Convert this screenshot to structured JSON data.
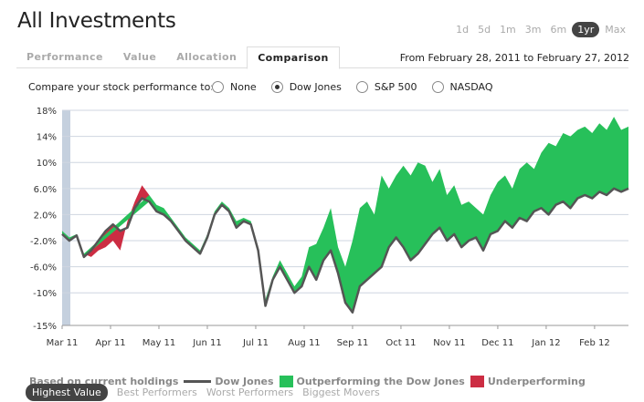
{
  "page": {
    "title": "All Investments"
  },
  "time_ranges": [
    {
      "label": "1d",
      "active": false
    },
    {
      "label": "5d",
      "active": false
    },
    {
      "label": "1m",
      "active": false
    },
    {
      "label": "3m",
      "active": false
    },
    {
      "label": "6m",
      "active": false
    },
    {
      "label": "1yr",
      "active": true
    },
    {
      "label": "Max",
      "active": false
    }
  ],
  "tabs": [
    {
      "label": "Performance",
      "active": false
    },
    {
      "label": "Value",
      "active": false
    },
    {
      "label": "Allocation",
      "active": false
    },
    {
      "label": "Comparison",
      "active": true
    }
  ],
  "date_range": "From February 28, 2011 to February 27, 2012",
  "compare": {
    "prompt": "Compare your stock performance to:",
    "options": [
      {
        "label": "None",
        "selected": false
      },
      {
        "label": "Dow Jones",
        "selected": true
      },
      {
        "label": "S&P 500",
        "selected": false
      },
      {
        "label": "NASDAQ",
        "selected": false
      }
    ]
  },
  "legend": {
    "prefix": "Based on current holdings",
    "line_label": "Dow Jones",
    "outperforming_label": "Outperforming the Dow Jones",
    "underperforming_label": "Underperforming"
  },
  "views": [
    {
      "label": "Highest Value",
      "active": true
    },
    {
      "label": "Best Performers",
      "active": false
    },
    {
      "label": "Worst Performers",
      "active": false
    },
    {
      "label": "Biggest Movers",
      "active": false
    }
  ],
  "colors": {
    "outperforming": "#27c05a",
    "underperforming": "#cc2d43",
    "line": "#555555",
    "grid": "#cfd6e0"
  },
  "chart_data": {
    "type": "area",
    "title": "",
    "xlabel": "",
    "ylabel": "",
    "ylim": [
      -15,
      18
    ],
    "y_ticks": [
      "18%",
      "14%",
      "10%",
      "6.0%",
      "2.0%",
      "-2.0%",
      "-6.0%",
      "-10%",
      "-15%"
    ],
    "x_ticks": [
      "Mar 11",
      "Apr 11",
      "May 11",
      "Jun 11",
      "Jul 11",
      "Aug 11",
      "Sep 11",
      "Oct 11",
      "Nov 11",
      "Dec 11",
      "Jan 12",
      "Feb 12"
    ],
    "x_tick_positions": [
      0,
      1,
      2,
      3,
      4,
      5,
      6,
      7,
      8,
      9,
      10,
      11
    ],
    "grid": true,
    "series": [
      {
        "name": "Dow Jones",
        "x": [
          0,
          0.15,
          0.3,
          0.45,
          0.6,
          0.75,
          0.9,
          1.05,
          1.2,
          1.35,
          1.5,
          1.65,
          1.8,
          1.95,
          2.1,
          2.25,
          2.4,
          2.55,
          2.7,
          2.85,
          3.0,
          3.15,
          3.3,
          3.45,
          3.6,
          3.75,
          3.9,
          4.05,
          4.2,
          4.35,
          4.5,
          4.65,
          4.8,
          4.95,
          5.1,
          5.25,
          5.4,
          5.55,
          5.7,
          5.85,
          6.0,
          6.15,
          6.3,
          6.45,
          6.6,
          6.75,
          6.9,
          7.05,
          7.2,
          7.35,
          7.5,
          7.65,
          7.8,
          7.95,
          8.1,
          8.25,
          8.4,
          8.55,
          8.7,
          8.85,
          9.0,
          9.15,
          9.3,
          9.45,
          9.6,
          9.75,
          9.9,
          10.05,
          10.2,
          10.35,
          10.5,
          10.65,
          10.8,
          10.95,
          11.1,
          11.25,
          11.4,
          11.55,
          11.7
        ],
        "values": [
          -1.0,
          -2.0,
          -1.2,
          -4.5,
          -3.5,
          -2.0,
          -0.5,
          0.5,
          -0.5,
          0.0,
          3.0,
          4.5,
          4.0,
          2.5,
          2.0,
          1.0,
          -0.5,
          -2.0,
          -3.0,
          -4.0,
          -1.5,
          2.0,
          3.5,
          2.5,
          0.0,
          1.0,
          0.5,
          -3.5,
          -12.0,
          -8.0,
          -6.0,
          -8.0,
          -10.0,
          -9.0,
          -6.0,
          -8.0,
          -5.0,
          -3.5,
          -7.0,
          -11.5,
          -13.0,
          -9.0,
          -8.0,
          -7.0,
          -6.0,
          -3.0,
          -1.5,
          -3.0,
          -5.0,
          -4.0,
          -2.5,
          -1.0,
          0.0,
          -2.0,
          -1.0,
          -3.0,
          -2.0,
          -1.5,
          -3.5,
          -1.0,
          -0.5,
          1.0,
          0.0,
          1.5,
          1.0,
          2.5,
          3.0,
          2.0,
          3.5,
          4.0,
          3.0,
          4.5,
          5.0,
          4.5,
          5.5,
          5.0,
          6.0,
          5.5,
          6.0
        ]
      },
      {
        "name": "Outperforming the Dow Jones",
        "x": [
          0,
          0.15,
          0.3,
          0.45,
          0.6,
          0.75,
          0.9,
          1.05,
          1.2,
          1.35,
          1.5,
          1.65,
          1.8,
          1.95,
          2.1,
          2.25,
          2.4,
          2.55,
          2.7,
          2.85,
          3.0,
          3.15,
          3.3,
          3.45,
          3.6,
          3.75,
          3.9,
          4.05,
          4.2,
          4.35,
          4.5,
          4.65,
          4.8,
          4.95,
          5.1,
          5.25,
          5.4,
          5.55,
          5.7,
          5.85,
          6.0,
          6.15,
          6.3,
          6.45,
          6.6,
          6.75,
          6.9,
          7.05,
          7.2,
          7.35,
          7.5,
          7.65,
          7.8,
          7.95,
          8.1,
          8.25,
          8.4,
          8.55,
          8.7,
          8.85,
          9.0,
          9.15,
          9.3,
          9.45,
          9.6,
          9.75,
          9.9,
          10.05,
          10.2,
          10.35,
          10.5,
          10.65,
          10.8,
          10.95,
          11.1,
          11.25,
          11.4,
          11.55,
          11.7
        ],
        "values": [
          -0.5,
          -1.5,
          -1.0,
          -4.0,
          -4.5,
          -3.5,
          -3.0,
          -2.0,
          -3.5,
          1.0,
          4.0,
          6.5,
          5.0,
          3.5,
          3.0,
          1.5,
          0.0,
          -1.5,
          -2.5,
          -3.5,
          -1.0,
          2.5,
          4.0,
          3.0,
          1.0,
          1.5,
          1.0,
          -3.0,
          -11.0,
          -7.5,
          -5.0,
          -7.0,
          -9.0,
          -7.5,
          -3.0,
          -2.5,
          0.0,
          3.0,
          -3.0,
          -6.0,
          -2.0,
          3.0,
          4.0,
          2.0,
          8.0,
          6.0,
          8.0,
          9.5,
          8.0,
          10.0,
          9.5,
          7.0,
          9.0,
          5.0,
          6.5,
          3.5,
          4.0,
          3.0,
          2.0,
          5.0,
          7.0,
          8.0,
          6.0,
          9.0,
          10.0,
          9.0,
          11.5,
          13.0,
          12.5,
          14.5,
          14.0,
          15.0,
          15.5,
          14.5,
          16.0,
          15.0,
          17.0,
          15.0,
          15.5
        ]
      }
    ],
    "underperforming_range": [
      0.45,
      1.8
    ]
  }
}
